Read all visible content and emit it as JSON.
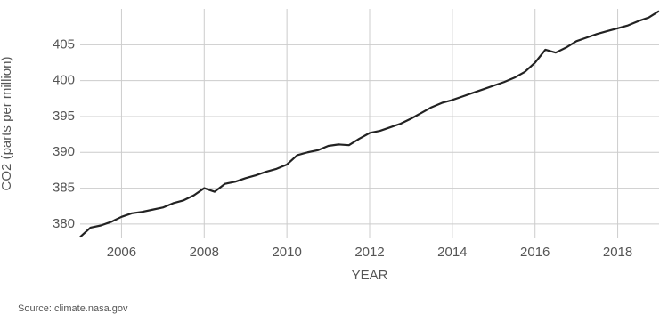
{
  "chart_data": {
    "type": "line",
    "x_label": "YEAR",
    "y_label": "CO2 (parts per million)",
    "source": "Source: climate.nasa.gov",
    "x": [
      2005.0,
      2005.25,
      2005.5,
      2005.75,
      2006.0,
      2006.25,
      2006.5,
      2006.75,
      2007.0,
      2007.25,
      2007.5,
      2007.75,
      2008.0,
      2008.25,
      2008.5,
      2008.75,
      2009.0,
      2009.25,
      2009.5,
      2009.75,
      2010.0,
      2010.25,
      2010.5,
      2010.75,
      2011.0,
      2011.25,
      2011.5,
      2011.75,
      2012.0,
      2012.25,
      2012.5,
      2012.75,
      2013.0,
      2013.25,
      2013.5,
      2013.75,
      2014.0,
      2014.25,
      2014.5,
      2014.75,
      2015.0,
      2015.25,
      2015.5,
      2015.75,
      2016.0,
      2016.25,
      2016.5,
      2016.75,
      2017.0,
      2017.25,
      2017.5,
      2017.75,
      2018.0,
      2018.25,
      2018.5,
      2018.75,
      2019.0
    ],
    "series": [
      {
        "color": "#222222",
        "values": [
          378.2,
          379.5,
          379.8,
          380.3,
          381.0,
          381.5,
          381.7,
          382.0,
          382.3,
          382.9,
          383.3,
          384.0,
          385.0,
          384.5,
          385.6,
          385.9,
          386.4,
          386.8,
          387.3,
          387.7,
          388.3,
          389.6,
          390.0,
          390.3,
          390.9,
          391.1,
          391.0,
          391.9,
          392.7,
          393.0,
          393.5,
          394.0,
          394.7,
          395.5,
          396.3,
          396.9,
          397.3,
          397.8,
          398.3,
          398.8,
          399.3,
          399.8,
          400.4,
          401.2,
          402.5,
          404.3,
          403.9,
          404.6,
          405.5,
          406.0,
          406.5,
          406.9,
          407.3,
          407.7,
          408.3,
          408.8,
          409.7
        ]
      }
    ],
    "xlim": [
      2005,
      2019
    ],
    "ylim": [
      378,
      410
    ],
    "xticks": [
      2006,
      2008,
      2010,
      2012,
      2014,
      2016,
      2018
    ],
    "yticks": [
      380,
      385,
      390,
      395,
      400,
      405
    ],
    "grid": true
  }
}
